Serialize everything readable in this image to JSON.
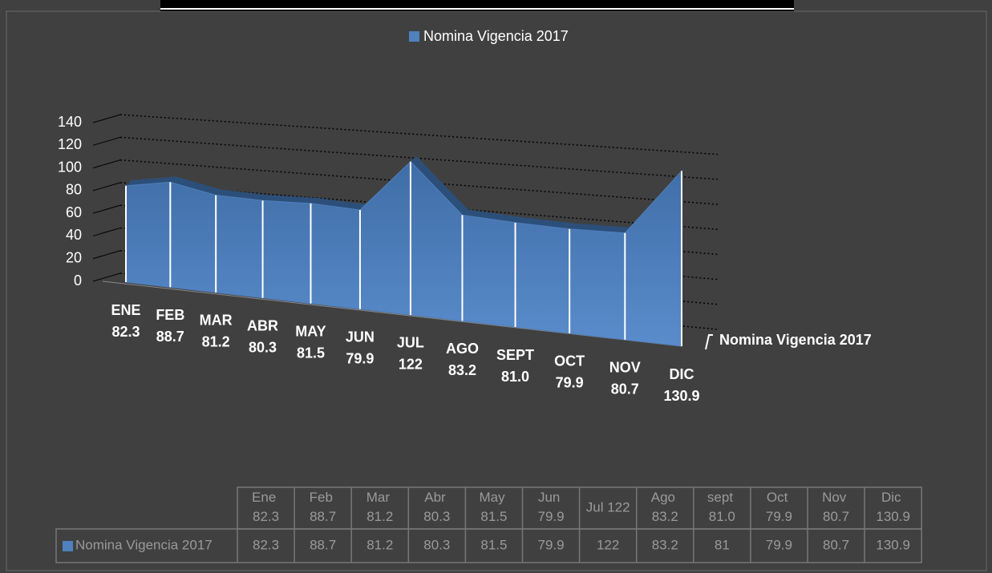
{
  "chart_data": {
    "type": "area3d",
    "categories": [
      "ENE",
      "FEB",
      "MAR",
      "ABR",
      "MAY",
      "JUN",
      "JUL",
      "AGO",
      "SEPT",
      "OCT",
      "NOV",
      "DIC"
    ],
    "series": [
      {
        "name": "Nomina Vigencia 2017",
        "color": "#4f81bd",
        "values": [
          82.3,
          88.7,
          81.2,
          80.3,
          81.5,
          79.9,
          122,
          83.2,
          81,
          79.9,
          80.7,
          130.9
        ],
        "value_labels": [
          "82.3",
          "88.7",
          "81.2",
          "80.3",
          "81.5",
          "79.9",
          "122",
          "83.2",
          "81.0",
          "79.9",
          "80.7",
          "130.9"
        ]
      }
    ],
    "ylim": [
      0,
      140
    ],
    "yticks": [
      0,
      20,
      40,
      60,
      80,
      100,
      120,
      140
    ],
    "grid": true,
    "legend": "top",
    "table": {
      "columns": [
        "Ene 82.3",
        "Feb 88.7",
        "Mar 81.2",
        "Abr 80.3",
        "May 81.5",
        "Jun 79.9",
        "Jul 122",
        "Ago 83.2",
        "sept 81.0",
        "Oct 79.9",
        "Nov 80.7",
        "Dic 130.9"
      ]
    }
  }
}
